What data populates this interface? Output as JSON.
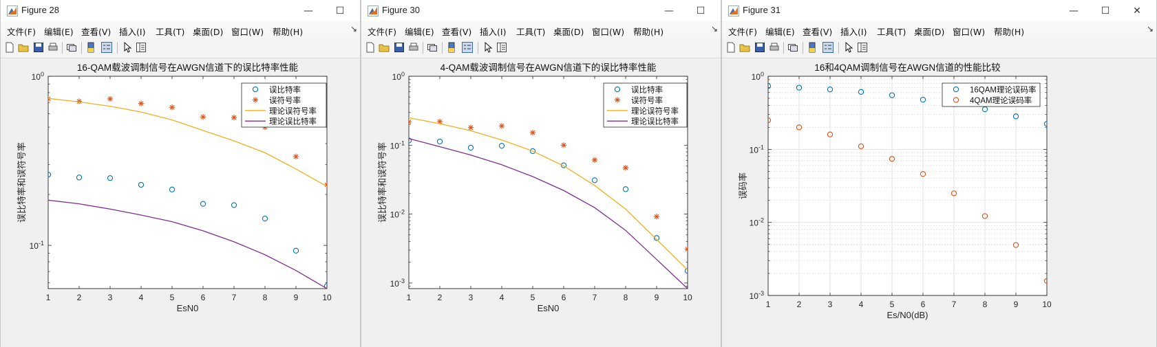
{
  "menu_labels": [
    "文件(F)",
    "编辑(E)",
    "查看(V)",
    "插入(I)",
    "工具(T)",
    "桌面(D)",
    "窗口(W)",
    "帮助(H)"
  ],
  "menu_arrow": "↘",
  "window_controls": {
    "minimize": "—",
    "maximize": "☐",
    "close": "✕"
  },
  "toolbar_icons": [
    "new-figure-icon",
    "open-file-icon",
    "save-icon",
    "print-icon",
    "link-plot-icon",
    "insert-colorbar-icon",
    "insert-legend-icon",
    "pointer-icon",
    "property-inspector-icon"
  ],
  "figures": [
    {
      "title": "Figure 28",
      "chart_data": {
        "type": "scatter",
        "title": "16-QAM载波调制信号在AWGN信道下的误比特率性能",
        "xlabel": "EsN0",
        "ylabel": "误比特率和误符号率",
        "yscale": "log",
        "xlim": [
          1,
          10
        ],
        "ylim": [
          0.0555,
          1
        ],
        "grid": false,
        "legend_position": "top-right",
        "xticks": [
          1,
          2,
          3,
          4,
          5,
          6,
          7,
          8,
          9,
          10
        ],
        "yticks": [
          {
            "value": 1,
            "base": "10",
            "exp": "0"
          },
          {
            "value": 0.1,
            "base": "10",
            "exp": "-1"
          }
        ],
        "x": [
          1,
          2,
          3,
          4,
          5,
          6,
          7,
          8,
          9,
          10
        ],
        "series": [
          {
            "name": "误比特率",
            "kind": "marker-circle",
            "color": "#0072BD",
            "values": [
              0.262,
              0.252,
              0.25,
              0.228,
              0.214,
              0.176,
              0.173,
              0.144,
              0.093,
              0.0575
            ]
          },
          {
            "name": "误符号率",
            "kind": "marker-star",
            "color": "#D95319",
            "values": [
              0.735,
              0.71,
              0.735,
              0.69,
              0.655,
              0.575,
              0.57,
              0.5,
              0.335,
              0.228
            ]
          },
          {
            "name": "理论误符号率",
            "kind": "line",
            "color": "#EDB120",
            "values": [
              0.74,
              0.705,
              0.665,
              0.615,
              0.552,
              0.478,
              0.415,
              0.353,
              0.283,
              0.223
            ]
          },
          {
            "name": "理论误比特率",
            "kind": "line",
            "color": "#7E2F8E",
            "values": [
              0.185,
              0.176,
              0.164,
              0.151,
              0.138,
              0.122,
              0.105,
              0.088,
              0.071,
              0.0555
            ]
          }
        ]
      }
    },
    {
      "title": "Figure 30",
      "chart_data": {
        "type": "scatter",
        "title": "4-QAM载波调制信号在AWGN信道下的误比特率性能",
        "xlabel": "EsN0",
        "ylabel": "误比特率和误符号率",
        "yscale": "log",
        "xlim": [
          1,
          10
        ],
        "ylim": [
          0.00083,
          1
        ],
        "grid": false,
        "legend_position": "top-right",
        "xticks": [
          1,
          2,
          3,
          4,
          5,
          6,
          7,
          8,
          9,
          10
        ],
        "yticks": [
          {
            "value": 1,
            "base": "10",
            "exp": "0"
          },
          {
            "value": 0.1,
            "base": "10",
            "exp": "-1"
          },
          {
            "value": 0.01,
            "base": "10",
            "exp": "-2"
          },
          {
            "value": 0.001,
            "base": "10",
            "exp": "-3"
          }
        ],
        "x": [
          1,
          2,
          3,
          4,
          5,
          6,
          7,
          8,
          9,
          10
        ],
        "series": [
          {
            "name": "误比特率",
            "kind": "marker-circle",
            "color": "#0072BD",
            "values": [
              0.117,
              0.113,
              0.092,
              0.098,
              0.082,
              0.051,
              0.031,
              0.023,
              0.0045,
              0.0015
            ]
          },
          {
            "name": "误符号率",
            "kind": "marker-star",
            "color": "#D95319",
            "values": [
              0.218,
              0.22,
              0.18,
              0.19,
              0.152,
              0.1,
              0.061,
              0.047,
              0.0092,
              0.0031
            ]
          },
          {
            "name": "理论误符号率",
            "kind": "line",
            "color": "#EDB120",
            "values": [
              0.25,
              0.205,
              0.162,
              0.119,
              0.082,
              0.05,
              0.026,
              0.0118,
              0.0043,
              0.00155
            ]
          },
          {
            "name": "理论误比特率",
            "kind": "line",
            "color": "#7E2F8E",
            "values": [
              0.125,
              0.095,
              0.072,
              0.052,
              0.035,
              0.022,
              0.0124,
              0.0058,
              0.0022,
              0.00083
            ]
          }
        ]
      }
    },
    {
      "title": "Figure 31",
      "chart_data": {
        "type": "scatter",
        "title": "16和4QAM调制信号在AWGN信道的性能比较",
        "xlabel": "Es/N0(dB)",
        "ylabel": "误码率",
        "yscale": "log",
        "xlim": [
          1,
          10
        ],
        "ylim": [
          0.001,
          1
        ],
        "grid": true,
        "legend_position": "top-right",
        "xticks": [
          1,
          2,
          3,
          4,
          5,
          6,
          7,
          8,
          9,
          10
        ],
        "yticks": [
          {
            "value": 1,
            "base": "10",
            "exp": "0"
          },
          {
            "value": 0.1,
            "base": "10",
            "exp": "-1"
          },
          {
            "value": 0.01,
            "base": "10",
            "exp": "-2"
          },
          {
            "value": 0.001,
            "base": "10",
            "exp": "-3"
          }
        ],
        "x": [
          1,
          2,
          3,
          4,
          5,
          6,
          7,
          8,
          9,
          10
        ],
        "series": [
          {
            "name": "16QAM理论误码率",
            "kind": "marker-circle",
            "color": "#0072BD",
            "values": [
              0.735,
              0.698,
              0.66,
              0.61,
              0.55,
              0.478,
              0.415,
              0.353,
              0.283,
              0.223
            ]
          },
          {
            "name": "4QAM理论误码率",
            "kind": "marker-circle",
            "color": "#D95319",
            "values": [
              0.25,
              0.2,
              0.16,
              0.11,
              0.074,
              0.046,
              0.025,
              0.0122,
              0.0049,
              0.00158
            ]
          }
        ]
      }
    }
  ]
}
